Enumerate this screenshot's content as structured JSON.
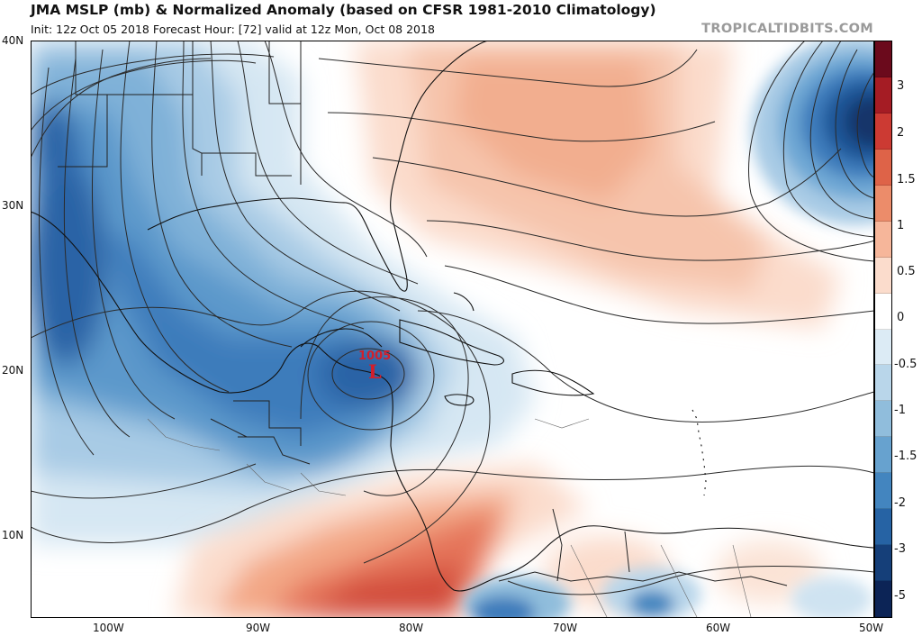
{
  "header": {
    "title": "JMA MSLP (mb) & Normalized Anomaly (based on CFSR 1981-2010 Climatology)",
    "subtitle": "Init: 12z Oct 05 2018   Forecast Hour: [72]   valid at 12z Mon, Oct 08 2018",
    "brand": "TROPICALTIDBITS.COM"
  },
  "axes": {
    "lat_labels": [
      "40N",
      "30N",
      "20N",
      "10N"
    ],
    "lon_labels": [
      "100W",
      "90W",
      "80W",
      "70W",
      "60W",
      "50W"
    ]
  },
  "colorbar": {
    "labels": [
      "3",
      "2",
      "1.5",
      "1",
      "0.5",
      "0",
      "-0.5",
      "-1",
      "-1.5",
      "-2",
      "-3",
      "-5"
    ],
    "colors": [
      "#6b0a1c",
      "#a51c24",
      "#cc3a33",
      "#de6348",
      "#ec8c6a",
      "#f6b69a",
      "#fbdccc",
      "#ffffff",
      "#dcebf5",
      "#b9d6ea",
      "#90bddc",
      "#67a2cf",
      "#4385bf",
      "#2663a4",
      "#153f79",
      "#0c2456"
    ]
  },
  "low_center": {
    "pressure": "1005",
    "symbol": "L",
    "color": "#d21f2b"
  }
}
